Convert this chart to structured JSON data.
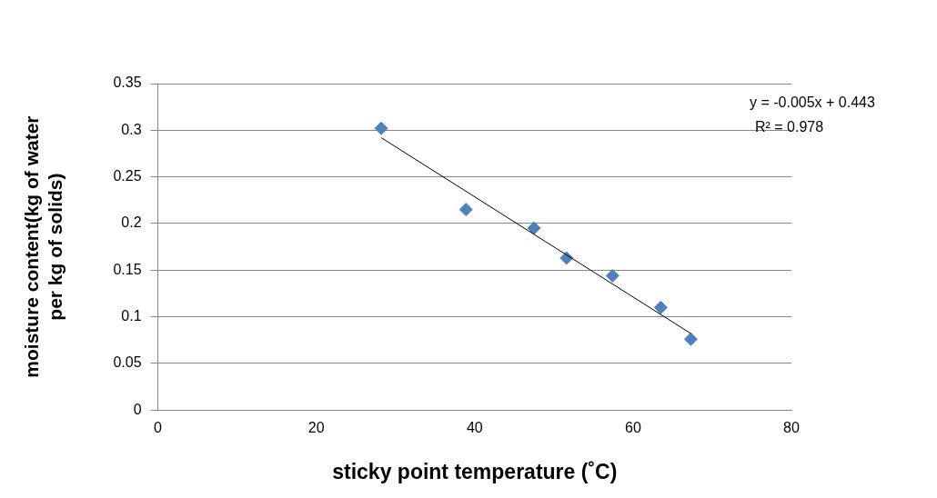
{
  "chart_data": {
    "type": "scatter",
    "xlabel": "sticky point temperature (˚C)",
    "ylabel": "moisture content(kg of water per kg of solids)",
    "x": [
      28.2,
      38.9,
      47.5,
      51.6,
      57.4,
      63.5,
      67.3
    ],
    "series": [
      {
        "color": "#4f81bd",
        "values": [
          0.302,
          0.215,
          0.195,
          0.163,
          0.144,
          0.11,
          0.076
        ],
        "marker": "diamond"
      },
      {
        "type": "line",
        "color": "#000000",
        "x": [
          28.2,
          67.3
        ],
        "values": [
          0.292,
          0.082
        ],
        "marker": "none"
      }
    ],
    "xlim": [
      0,
      80
    ],
    "xticks": [
      0,
      20,
      40,
      60,
      80
    ],
    "ylim": [
      0,
      0.35
    ],
    "yticks": [
      0,
      0.05,
      0.1,
      0.15,
      0.2,
      0.25,
      0.3,
      0.35
    ],
    "grid": "y",
    "legend": false,
    "annotations": [
      "y = -0.005x + 0.443",
      "R² = 0.978"
    ]
  }
}
